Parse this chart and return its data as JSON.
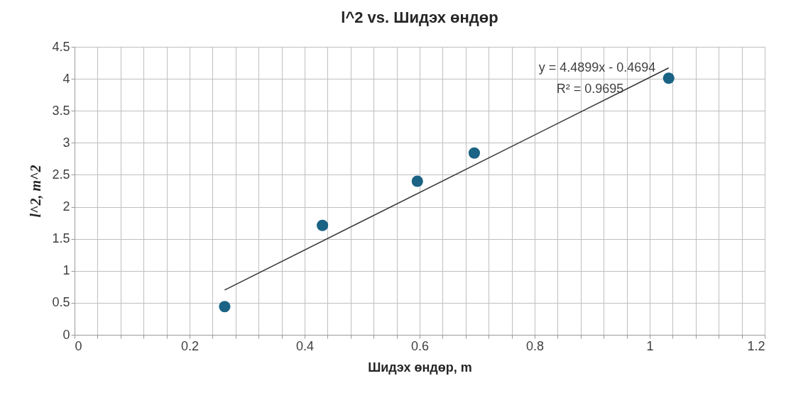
{
  "chart_data": {
    "type": "scatter",
    "title": "l^2 vs. Шидэх өндөр",
    "xlabel": "Шидэх өндөр, m",
    "ylabel": "l^2, m^2",
    "x": [
      0.261,
      0.431,
      0.596,
      0.695,
      1.033
    ],
    "series": [
      {
        "color": "#1a6384",
        "values": [
          0.44,
          1.71,
          2.4,
          2.84,
          4.01
        ]
      },
      {
        "type": "line",
        "marker": "none",
        "color": "#333333",
        "x": [
          0.261,
          1.033
        ],
        "values": [
          0.7,
          4.17
        ]
      }
    ],
    "annotations": [
      "y = 4.4899x - 0.4694",
      "R² = 0.9695"
    ],
    "xlim": [
      0,
      1.2
    ],
    "xticks": [
      0,
      {
        "value": 0.04,
        "label": null
      },
      {
        "value": 0.08,
        "label": null
      },
      {
        "value": 0.12,
        "label": null
      },
      {
        "value": 0.16,
        "label": null
      },
      0.2,
      {
        "value": 0.24,
        "label": null
      },
      {
        "value": 0.28,
        "label": null
      },
      {
        "value": 0.32,
        "label": null
      },
      {
        "value": 0.36,
        "label": null
      },
      0.4,
      {
        "value": 0.44,
        "label": null
      },
      {
        "value": 0.48,
        "label": null
      },
      {
        "value": 0.52,
        "label": null
      },
      {
        "value": 0.56,
        "label": null
      },
      0.6,
      {
        "value": 0.64,
        "label": null
      },
      {
        "value": 0.68,
        "label": null
      },
      {
        "value": 0.72,
        "label": null
      },
      {
        "value": 0.76,
        "label": null
      },
      0.8,
      {
        "value": 0.84,
        "label": null
      },
      {
        "value": 0.88,
        "label": null
      },
      {
        "value": 0.92,
        "label": null
      },
      {
        "value": 0.96,
        "label": null
      },
      1,
      {
        "value": 1.04,
        "label": null
      },
      {
        "value": 1.08,
        "label": null
      },
      {
        "value": 1.12,
        "label": null
      },
      {
        "value": 1.16,
        "label": null
      },
      1.2
    ],
    "ylim": [
      0,
      4.5
    ],
    "yticks": [
      0,
      0.5,
      1,
      1.5,
      2,
      2.5,
      3,
      3.5,
      4,
      4.5
    ],
    "grid": true,
    "marker": "circle"
  }
}
